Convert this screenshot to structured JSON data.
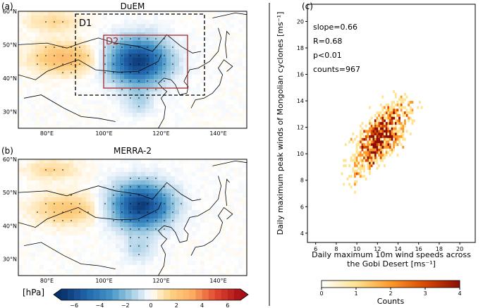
{
  "panels": {
    "a": {
      "letter": "(a)",
      "title": "DuEM",
      "box1_label": "D1",
      "box2_label": "D2"
    },
    "b": {
      "letter": "(b)",
      "title": "MERRA-2"
    },
    "c": {
      "letter": "(c)"
    }
  },
  "map_axes": {
    "lat_ticks": [
      "60°N",
      "50°N",
      "40°N",
      "30°N"
    ],
    "lon_ticks": [
      "80°E",
      "100°E",
      "120°E",
      "140°E"
    ]
  },
  "map_colorbar": {
    "unit_label": "[hPa]",
    "ticks": [
      "−6",
      "−4",
      "−2",
      "0",
      "2",
      "4",
      "6"
    ],
    "range": [
      -7,
      7
    ]
  },
  "fields": {
    "a": {
      "low_center_lonlat": [
        112,
        45
      ],
      "low_strength_hPa": -6.5,
      "high_center_lonlat": [
        86,
        46
      ],
      "high_strength_hPa": 2.5
    },
    "b": {
      "low_center_lonlat": [
        113,
        46
      ],
      "low_strength_hPa": -6.5,
      "high_center_lonlat": [
        87,
        45
      ],
      "high_strength_hPa": 2.0
    }
  },
  "colors": {
    "negative_strong": "#08306b",
    "negative_mid": "#4292c6",
    "neutral": "#ffffff",
    "positive_mid": "#fdae6b",
    "positive_strong": "#a50f15",
    "box_d2": "#a52a2a"
  },
  "chart_data": {
    "type": "heatmap",
    "subtype": "2d-histogram",
    "xlabel_line1": "Daily maximum 10m wind speeds across",
    "xlabel_line2": "the Gobi Desert [ms⁻¹]",
    "ylabel": "Daily maximum peak winds of Mongolian cyclones [ms⁻¹]",
    "x_ticks": [
      "6",
      "8",
      "10",
      "12",
      "14",
      "16",
      "18",
      "20"
    ],
    "y_ticks": [
      "4",
      "6",
      "8",
      "10",
      "12",
      "14",
      "16",
      "18",
      "20"
    ],
    "xlim": [
      5.2,
      21.5
    ],
    "ylim": [
      3.3,
      21.3
    ],
    "stats": [
      "slope=0.66",
      "R=0.68",
      "p<0.01",
      "counts=967"
    ],
    "fit": {
      "slope": 0.66,
      "intercept": 3.2
    },
    "colorbar": {
      "label": "Counts",
      "ticks": [
        "0",
        "1",
        "2",
        "3",
        "4"
      ],
      "range": [
        0,
        4
      ]
    },
    "n_counts": 967
  }
}
